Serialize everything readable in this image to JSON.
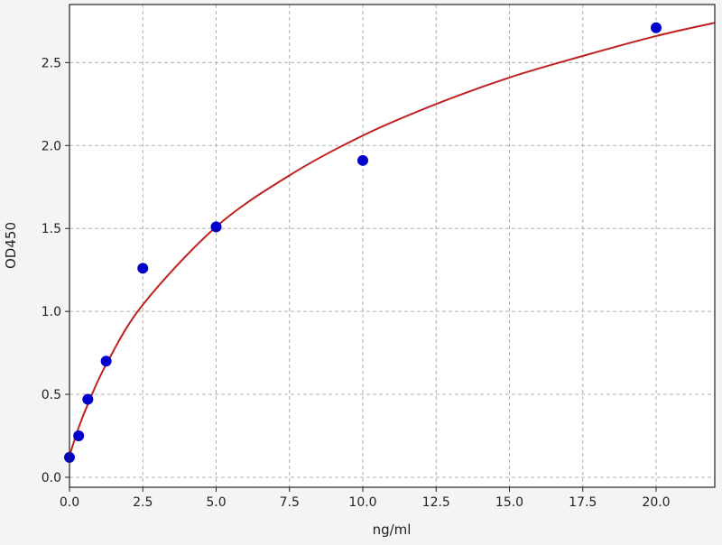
{
  "chart_data": {
    "type": "scatter",
    "title": "",
    "xlabel": "ng/ml",
    "ylabel": "OD450",
    "xlim": [
      0,
      22
    ],
    "ylim": [
      -0.06,
      2.85
    ],
    "xticks": [
      "0.0",
      "2.5",
      "5.0",
      "7.5",
      "10.0",
      "12.5",
      "15.0",
      "17.5",
      "20.0"
    ],
    "yticks": [
      "0.0",
      "0.5",
      "1.0",
      "1.5",
      "2.0",
      "2.5"
    ],
    "grid": true,
    "points": {
      "x": [
        0,
        0.3125,
        0.625,
        1.25,
        2.5,
        5,
        10,
        20
      ],
      "y": [
        0.12,
        0.25,
        0.47,
        0.7,
        1.26,
        1.51,
        1.91,
        2.71
      ],
      "color": "#0000cc"
    },
    "fit_curve": {
      "x": [
        0,
        0.3125,
        0.625,
        1.25,
        2.5,
        5,
        7.5,
        10,
        12.5,
        15,
        17.5,
        20,
        22
      ],
      "y": [
        0.13,
        0.3,
        0.44,
        0.68,
        1.04,
        1.51,
        1.82,
        2.06,
        2.25,
        2.41,
        2.54,
        2.66,
        2.74
      ],
      "color": "#c02020"
    }
  }
}
